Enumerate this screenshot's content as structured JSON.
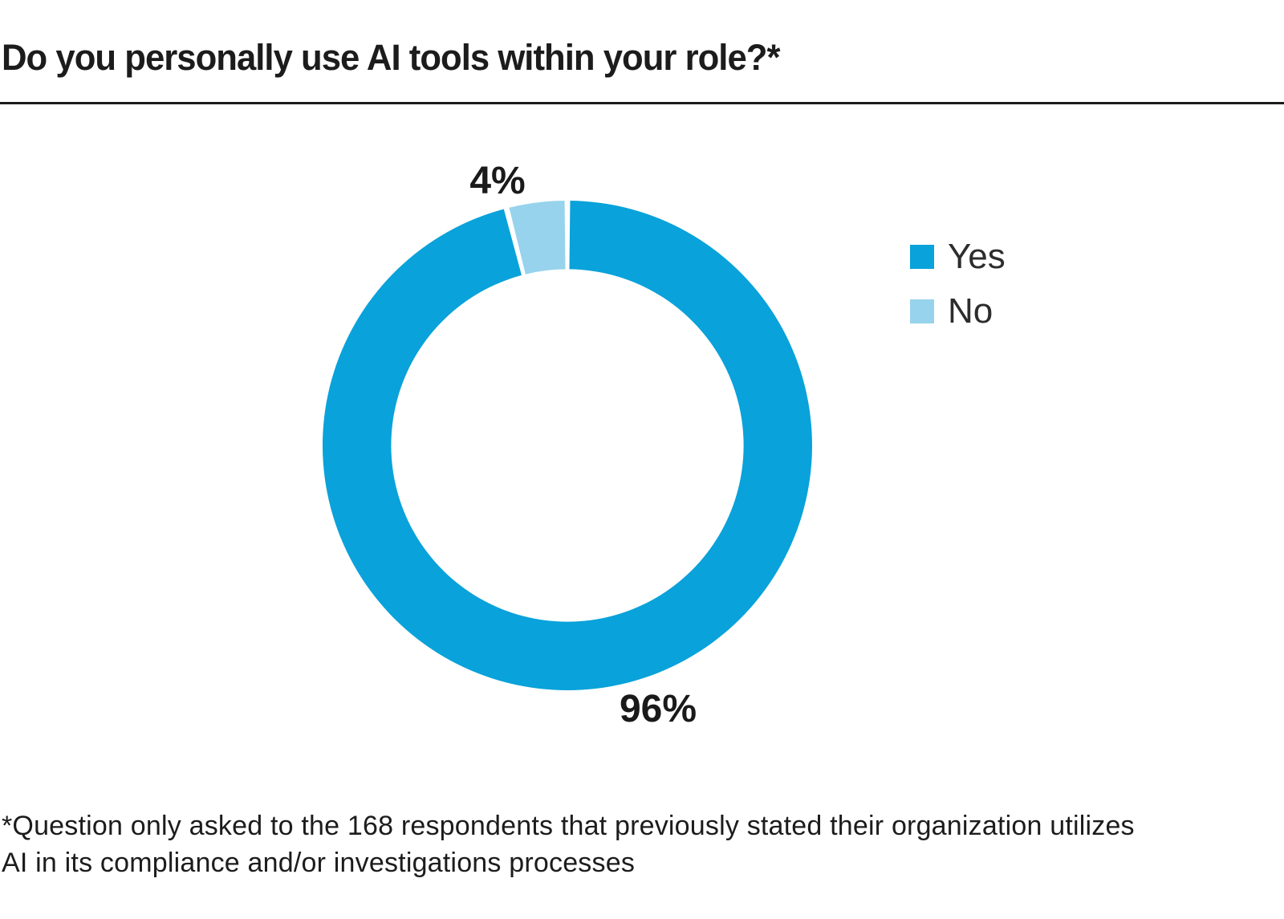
{
  "page": {
    "title": "Do you personally use AI tools within your role?*"
  },
  "chart_data": {
    "type": "pie",
    "subtype": "donut",
    "title": "Do you personally use AI tools within your role?*",
    "categories": [
      "Yes",
      "No"
    ],
    "values": [
      96,
      4
    ],
    "unit": "percent",
    "data_labels": [
      "96%",
      "4%"
    ],
    "colors": [
      "#09A2DA",
      "#97D3EC"
    ],
    "legend_position": "right",
    "start_angle_deg": 0,
    "direction": "clockwise",
    "donut_hole_ratio": 0.72
  },
  "labels": {
    "yes_value": "96%",
    "no_value": "4%"
  },
  "legend": {
    "items": [
      {
        "label": "Yes",
        "color": "#09A2DA"
      },
      {
        "label": "No",
        "color": "#97D3EC"
      }
    ]
  },
  "footnote": {
    "lines": [
      "*Question only asked to the 168 respondents that previously stated their organization utilizes",
      "AI in its compliance and/or investigations processes"
    ]
  }
}
